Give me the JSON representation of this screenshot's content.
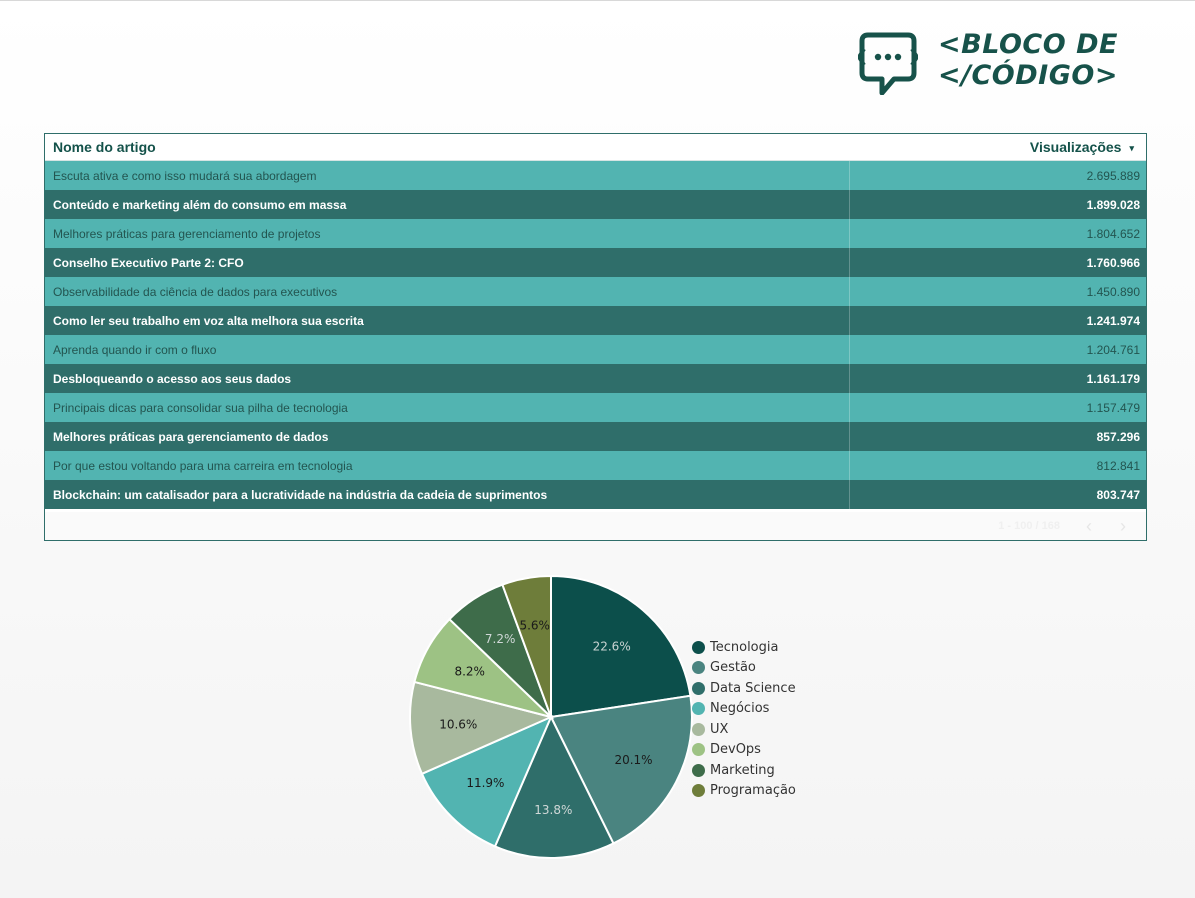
{
  "logo": {
    "line1": "<BLOCO DE",
    "line2": "</CÓDIGO>"
  },
  "table": {
    "col_name": "Nome do artigo",
    "col_views": "Visualizações",
    "sort_icon": "▾",
    "rows": [
      {
        "name": "Escuta ativa e como isso mudará sua abordagem",
        "views": "2.695.889"
      },
      {
        "name": "Conteúdo e marketing além do consumo em massa",
        "views": "1.899.028"
      },
      {
        "name": "Melhores práticas para gerenciamento de projetos",
        "views": "1.804.652"
      },
      {
        "name": "Conselho Executivo Parte 2: CFO",
        "views": "1.760.966"
      },
      {
        "name": "Observabilidade da ciência de dados para executivos",
        "views": "1.450.890"
      },
      {
        "name": "Como ler seu trabalho em voz alta melhora sua escrita",
        "views": "1.241.974"
      },
      {
        "name": "Aprenda quando ir com o fluxo",
        "views": "1.204.761"
      },
      {
        "name": "Desbloqueando o acesso aos seus dados",
        "views": "1.161.179"
      },
      {
        "name": "Principais dicas para consolidar sua pilha de tecnologia",
        "views": "1.157.479"
      },
      {
        "name": "Melhores práticas para gerenciamento de dados",
        "views": "857.296"
      },
      {
        "name": "Por que estou voltando para uma carreira em tecnologia",
        "views": "812.841"
      },
      {
        "name": "Blockchain: um catalisador para a lucratividade na indústria da cadeia de suprimentos",
        "views": "803.747"
      }
    ],
    "pager_text": "1 - 100 / 168",
    "prev_icon": "‹",
    "next_icon": "›"
  },
  "chart_data": {
    "type": "pie",
    "slices": [
      {
        "label": "Tecnologia",
        "value": 22.6,
        "text": "22.6%",
        "color": "#0c4f4b",
        "text_color": "#c9d3d2"
      },
      {
        "label": "Gestão",
        "value": 20.1,
        "text": "20.1%",
        "color": "#4a8480",
        "text_color": "#1a1a1a"
      },
      {
        "label": "Data Science",
        "value": 13.8,
        "text": "13.8%",
        "color": "#2f6e6a",
        "text_color": "#d0d8d7"
      },
      {
        "label": "Negócios",
        "value": 11.9,
        "text": "11.9%",
        "color": "#52b4b1",
        "text_color": "#1a1a1a"
      },
      {
        "label": "UX",
        "value": 10.6,
        "text": "10.6%",
        "color": "#a8b99e",
        "text_color": "#1a1a1a"
      },
      {
        "label": "DevOps",
        "value": 8.2,
        "text": "8.2%",
        "color": "#9dc284",
        "text_color": "#1a1a1a"
      },
      {
        "label": "Marketing",
        "value": 7.2,
        "text": "7.2%",
        "color": "#3e6c4a",
        "text_color": "#d0d8d7"
      },
      {
        "label": "Programação",
        "value": 5.6,
        "text": "5.6%",
        "color": "#6e7d3a",
        "text_color": "#1a1a1a"
      }
    ],
    "legend_position": "right"
  }
}
